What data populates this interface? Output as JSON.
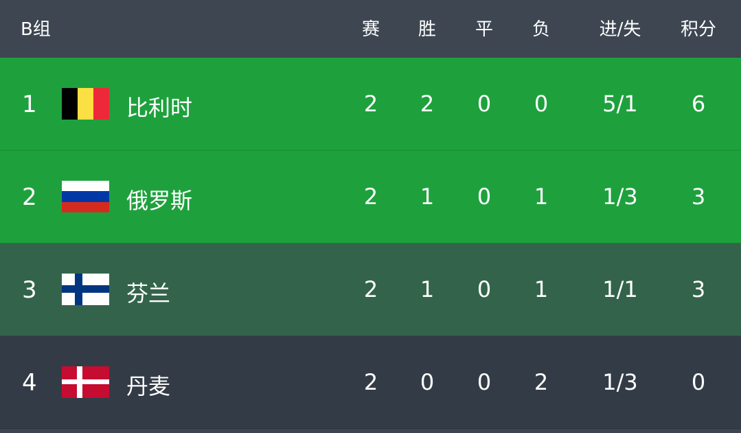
{
  "header": {
    "title": "B组",
    "columns": [
      "赛",
      "胜",
      "平",
      "负",
      "进/失",
      "积分"
    ]
  },
  "colors": {
    "qualified": "#1ea13d",
    "third": "#33644b",
    "eliminated": "#333c46",
    "header": "#3d4651"
  },
  "rows": [
    {
      "rank": "1",
      "team": "比利时",
      "flag": "belgium-flag",
      "played": "2",
      "won": "2",
      "drawn": "0",
      "lost": "0",
      "goals": "5/1",
      "points": "6"
    },
    {
      "rank": "2",
      "team": "俄罗斯",
      "flag": "russia-flag",
      "played": "2",
      "won": "1",
      "drawn": "0",
      "lost": "1",
      "goals": "1/3",
      "points": "3"
    },
    {
      "rank": "3",
      "team": "芬兰",
      "flag": "finland-flag",
      "played": "2",
      "won": "1",
      "drawn": "0",
      "lost": "1",
      "goals": "1/1",
      "points": "3"
    },
    {
      "rank": "4",
      "team": "丹麦",
      "flag": "denmark-flag",
      "played": "2",
      "won": "0",
      "drawn": "0",
      "lost": "2",
      "goals": "1/3",
      "points": "0"
    }
  ]
}
